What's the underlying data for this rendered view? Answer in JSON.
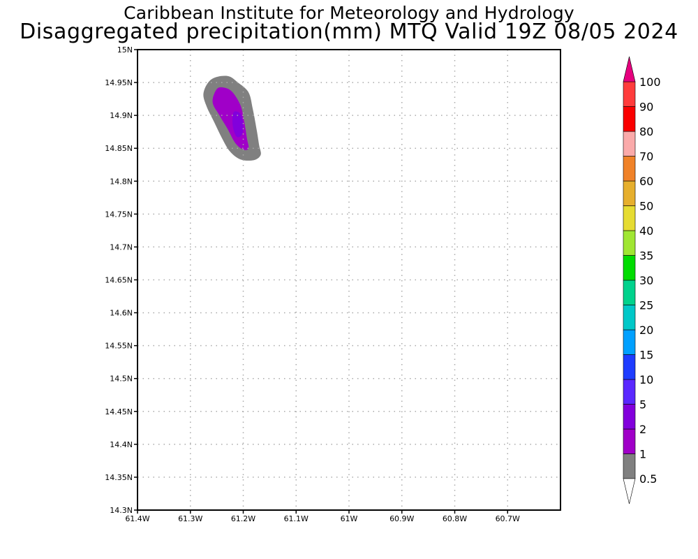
{
  "chart_data": {
    "type": "heatmap",
    "title": "Caribbean Institute for Meteorology and Hydrology",
    "subtitle": "Disaggregated precipitation(mm) MTQ Valid 19Z 08/05 2024",
    "xlabel": "",
    "ylabel": "",
    "xlim": [
      -61.4,
      -60.6
    ],
    "ylim": [
      14.3,
      15.0
    ],
    "x_ticks": [
      {
        "value": -61.4,
        "label": "61.4W"
      },
      {
        "value": -61.3,
        "label": "61.3W"
      },
      {
        "value": -61.2,
        "label": "61.2W"
      },
      {
        "value": -61.1,
        "label": "61.1W"
      },
      {
        "value": -61.0,
        "label": "61W"
      },
      {
        "value": -60.9,
        "label": "60.9W"
      },
      {
        "value": -60.8,
        "label": "60.8W"
      },
      {
        "value": -60.7,
        "label": "60.7W"
      }
    ],
    "y_ticks": [
      {
        "value": 14.3,
        "label": "14.3N"
      },
      {
        "value": 14.35,
        "label": "14.35N"
      },
      {
        "value": 14.4,
        "label": "14.4N"
      },
      {
        "value": 14.45,
        "label": "14.45N"
      },
      {
        "value": 14.5,
        "label": "14.5N"
      },
      {
        "value": 14.55,
        "label": "14.55N"
      },
      {
        "value": 14.6,
        "label": "14.6N"
      },
      {
        "value": 14.65,
        "label": "14.65N"
      },
      {
        "value": 14.7,
        "label": "14.7N"
      },
      {
        "value": 14.75,
        "label": "14.75N"
      },
      {
        "value": 14.8,
        "label": "14.8N"
      },
      {
        "value": 14.85,
        "label": "14.85N"
      },
      {
        "value": 14.9,
        "label": "14.9N"
      },
      {
        "value": 14.95,
        "label": "14.95N"
      },
      {
        "value": 15.0,
        "label": "15N"
      }
    ],
    "grid": true,
    "colorbar": {
      "levels": [
        "0.5",
        "1",
        "2",
        "5",
        "10",
        "15",
        "20",
        "25",
        "30",
        "35",
        "40",
        "50",
        "60",
        "70",
        "80",
        "90",
        "100"
      ],
      "colors": [
        "#808080",
        "#a000c8",
        "#8200dc",
        "#5a28ff",
        "#1e3cff",
        "#00a0ff",
        "#00c8c8",
        "#00d28c",
        "#00dc00",
        "#a0e632",
        "#e6dc32",
        "#e6af2d",
        "#f08228",
        "#faaaaa",
        "#fa0000",
        "#ff3c3c"
      ],
      "top_arrow_color": "#e6007e",
      "bottom_arrow_color": "#ffffff"
    },
    "contours": [
      {
        "level": "0.5",
        "color": "#808080",
        "polygon": [
          [
            -61.26,
            14.955
          ],
          [
            -61.23,
            14.96
          ],
          [
            -61.21,
            14.95
          ],
          [
            -61.19,
            14.935
          ],
          [
            -61.182,
            14.91
          ],
          [
            -61.175,
            14.88
          ],
          [
            -61.17,
            14.855
          ],
          [
            -61.167,
            14.84
          ],
          [
            -61.18,
            14.832
          ],
          [
            -61.205,
            14.833
          ],
          [
            -61.225,
            14.845
          ],
          [
            -61.24,
            14.865
          ],
          [
            -61.255,
            14.89
          ],
          [
            -61.27,
            14.915
          ],
          [
            -61.275,
            14.935
          ]
        ]
      },
      {
        "level": "1",
        "color": "#a000c8",
        "polygon": [
          [
            -61.25,
            14.94
          ],
          [
            -61.235,
            14.942
          ],
          [
            -61.22,
            14.935
          ],
          [
            -61.205,
            14.915
          ],
          [
            -61.198,
            14.89
          ],
          [
            -61.193,
            14.865
          ],
          [
            -61.19,
            14.85
          ],
          [
            -61.2,
            14.848
          ],
          [
            -61.215,
            14.858
          ],
          [
            -61.23,
            14.88
          ],
          [
            -61.245,
            14.9
          ],
          [
            -61.258,
            14.92
          ]
        ]
      },
      {
        "level": "2",
        "color": "#8200dc",
        "polygon": [
          [
            -61.218,
            14.905
          ],
          [
            -61.205,
            14.902
          ],
          [
            -61.2,
            14.885
          ],
          [
            -61.203,
            14.87
          ],
          [
            -61.213,
            14.868
          ],
          [
            -61.22,
            14.885
          ]
        ]
      }
    ]
  }
}
